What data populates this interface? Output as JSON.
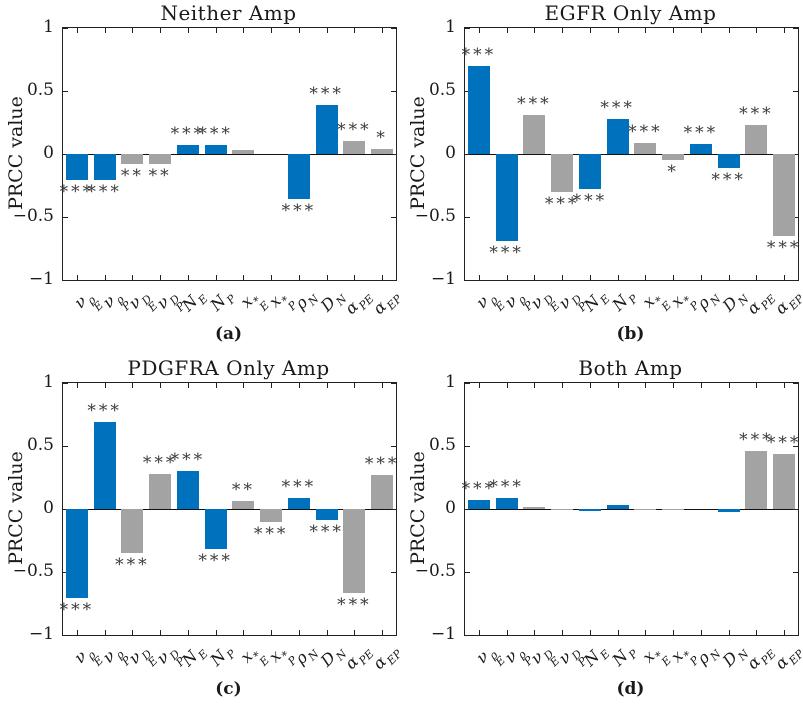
{
  "figure": {
    "background": "#ffffff",
    "colors": {
      "blue": "#0072BD",
      "gray": "#A3A3A3",
      "axis": "#222222",
      "stars": "#3b3b3b",
      "text": "#1a1a1a"
    },
    "bar_color_pattern": [
      "blue",
      "blue",
      "gray",
      "gray",
      "blue",
      "blue",
      "gray",
      "gray",
      "blue",
      "blue",
      "gray",
      "gray"
    ],
    "ytick_labels": [
      "1",
      "0.5",
      "0",
      "−0.5",
      "−1"
    ],
    "categories_display": [
      {
        "base": "ν",
        "sup": "ρ",
        "sub": "E"
      },
      {
        "base": "ν",
        "sup": "ρ",
        "sub": "P"
      },
      {
        "base": "ν",
        "sup": "D",
        "sub": "E"
      },
      {
        "base": "ν",
        "sup": "D",
        "sub": "P"
      },
      {
        "base": "N",
        "sup": "",
        "sub": "E"
      },
      {
        "base": "N",
        "sup": "",
        "sub": "P"
      },
      {
        "base": "x",
        "sup": "*",
        "sub": "E"
      },
      {
        "base": "x",
        "sup": "*",
        "sub": "P"
      },
      {
        "base": "ρ",
        "sup": "",
        "sub": "N"
      },
      {
        "base": "D",
        "sup": "",
        "sub": "N"
      },
      {
        "base": "α",
        "sup": "",
        "sub": "PE"
      },
      {
        "base": "α",
        "sup": "",
        "sub": "EP"
      }
    ]
  },
  "chart_data": [
    {
      "type": "bar",
      "panel": "a",
      "title": "Neither Amp",
      "caption": "(a)",
      "xlabel": "",
      "ylabel": "PRCC value",
      "ylim": [
        -1,
        1
      ],
      "yticks": [
        1,
        0.5,
        0,
        -0.5,
        -1
      ],
      "categories": [
        "ν_E^ρ",
        "ν_P^ρ",
        "ν_E^D",
        "ν_P^D",
        "N_E",
        "N_P",
        "x_E^*",
        "x_P^*",
        "ρ_N",
        "D_N",
        "α_PE",
        "α_EP"
      ],
      "values": [
        -0.21,
        -0.21,
        -0.08,
        -0.08,
        0.07,
        0.07,
        0.03,
        0,
        -0.36,
        0.39,
        0.1,
        0.04
      ],
      "significance": [
        "***",
        "***",
        "**",
        "**",
        "***",
        "***",
        "",
        "",
        "***",
        "***",
        "***",
        "*"
      ]
    },
    {
      "type": "bar",
      "panel": "b",
      "title": "EGFR Only Amp",
      "caption": "(b)",
      "xlabel": "",
      "ylabel": "PRCC value",
      "ylim": [
        -1,
        1
      ],
      "yticks": [
        1,
        0.5,
        0,
        -0.5,
        -1
      ],
      "categories": [
        "ν_E^ρ",
        "ν_P^ρ",
        "ν_E^D",
        "ν_P^D",
        "N_E",
        "N_P",
        "x_E^*",
        "x_P^*",
        "ρ_N",
        "D_N",
        "α_PE",
        "α_EP"
      ],
      "values": [
        0.7,
        -0.69,
        0.31,
        -0.3,
        -0.28,
        0.28,
        0.09,
        -0.05,
        0.08,
        -0.11,
        0.23,
        -0.65
      ],
      "significance": [
        "***",
        "***",
        "***",
        "***",
        "***",
        "***",
        "***",
        "*",
        "***",
        "***",
        "***",
        "***"
      ]
    },
    {
      "type": "bar",
      "panel": "c",
      "title": "PDGFRA Only Amp",
      "caption": "(c)",
      "xlabel": "",
      "ylabel": "PRCC value",
      "ylim": [
        -1,
        1
      ],
      "yticks": [
        1,
        0.5,
        0,
        -0.5,
        -1
      ],
      "categories": [
        "ν_E^ρ",
        "ν_P^ρ",
        "ν_E^D",
        "ν_P^D",
        "N_E",
        "N_P",
        "x_E^*",
        "x_P^*",
        "ρ_N",
        "D_N",
        "α_PE",
        "α_EP"
      ],
      "values": [
        -0.71,
        0.69,
        -0.35,
        0.28,
        0.3,
        -0.32,
        0.06,
        -0.1,
        0.09,
        -0.09,
        -0.67,
        0.27
      ],
      "significance": [
        "***",
        "***",
        "***",
        "***",
        "***",
        "***",
        "**",
        "***",
        "***",
        "***",
        "***",
        "***"
      ]
    },
    {
      "type": "bar",
      "panel": "d",
      "title": "Both Amp",
      "caption": "(d)",
      "xlabel": "",
      "ylabel": "PRCC value",
      "ylim": [
        -1,
        1
      ],
      "yticks": [
        1,
        0.5,
        0,
        -0.5,
        -1
      ],
      "categories": [
        "ν_E^ρ",
        "ν_P^ρ",
        "ν_E^D",
        "ν_P^D",
        "N_E",
        "N_P",
        "x_E^*",
        "x_P^*",
        "ρ_N",
        "D_N",
        "α_PE",
        "α_EP"
      ],
      "values": [
        0.07,
        0.09,
        0.015,
        -0.005,
        -0.015,
        0.035,
        -0.005,
        -0.01,
        0,
        -0.025,
        0.46,
        0.44
      ],
      "significance": [
        "***",
        "***",
        "",
        "",
        "",
        "",
        "",
        "",
        "",
        "",
        "***",
        "***"
      ]
    }
  ]
}
